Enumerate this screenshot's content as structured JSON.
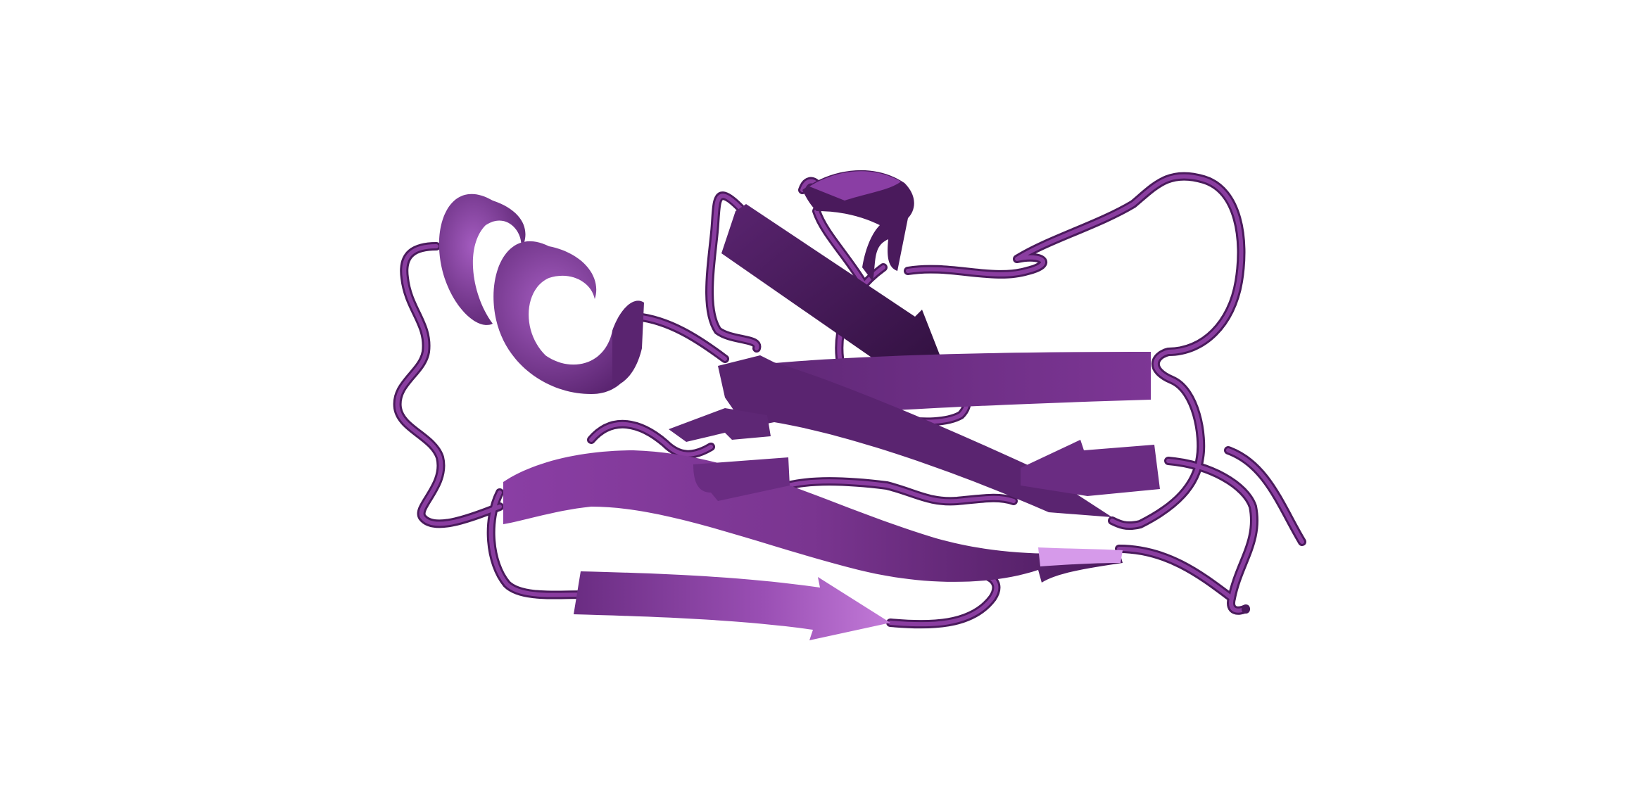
{
  "scene": {
    "background": "#ffffff",
    "representation": "cartoon",
    "colors": {
      "base": "#7a3590",
      "dark": "#3f1450",
      "mid": "#6a2c82",
      "light": "#a85cc2",
      "highlight": "#d69aea",
      "coil": "#8a3da0",
      "coil_edge": "#4a1a5c"
    },
    "elements": {
      "helices": 3,
      "strands": 8,
      "loops": "coil"
    }
  }
}
